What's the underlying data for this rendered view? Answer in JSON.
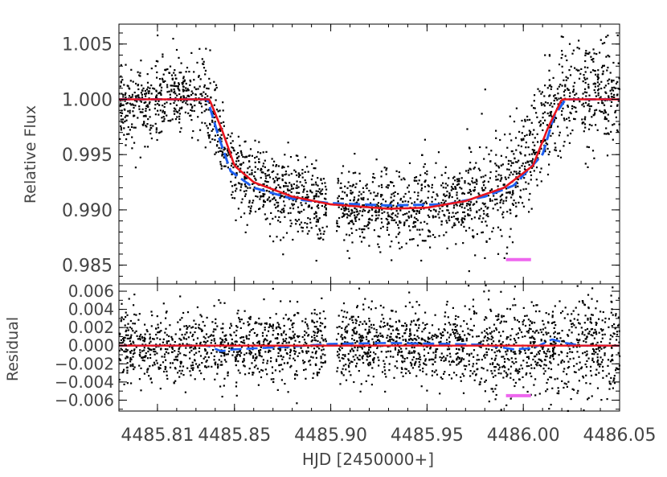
{
  "chart_data": [
    {
      "type": "scatter",
      "panel": "top",
      "title": "",
      "xlabel": "",
      "ylabel": "Relative Flux",
      "xlim": [
        4485.79,
        4486.05
      ],
      "ylim": [
        0.9833,
        1.0068
      ],
      "x_ticks": [
        4485.81,
        4485.85,
        4485.9,
        4485.95,
        4486.0,
        4486.05
      ],
      "y_ticks": [
        0.985,
        0.99,
        0.995,
        1.0,
        1.005
      ],
      "y_tick_labels": [
        "0.985",
        "0.990",
        "0.995",
        "1.000",
        "1.005"
      ],
      "grid": false,
      "legend": "none",
      "series": [
        {
          "kind": "points",
          "color": "#000000",
          "description_of_spread": "photometric points, scatter approx ±0.0018",
          "x": [
            4485.8,
            4485.82,
            4485.835,
            4485.85,
            4485.87,
            4485.9,
            4485.94,
            4485.97,
            4485.99,
            4486.005,
            4486.02,
            4486.04
          ],
          "y": [
            0.9995,
            1.0005,
            1.0001,
            0.9935,
            0.9915,
            0.9905,
            0.9902,
            0.9908,
            0.9922,
            0.995,
            1.0002,
            1.0005
          ]
        },
        {
          "kind": "line",
          "color": "#1e5ff0",
          "style": "dashed",
          "x": [
            4485.79,
            4485.836,
            4485.842,
            4485.848,
            4485.86,
            4485.88,
            4485.9,
            4485.93,
            4485.96,
            4485.98,
            4485.995,
            4486.01,
            4486.016,
            4486.022,
            4486.05
          ],
          "y": [
            1.0,
            1.0,
            0.9965,
            0.9935,
            0.992,
            0.991,
            0.9906,
            0.9904,
            0.9905,
            0.9912,
            0.9922,
            0.995,
            0.9985,
            1.0,
            1.0
          ]
        },
        {
          "kind": "line",
          "color": "#e8141e",
          "style": "solid",
          "x": [
            4485.79,
            4485.837,
            4485.844,
            4485.85,
            4485.86,
            4485.88,
            4485.9,
            4485.93,
            4485.95,
            4485.97,
            4485.99,
            4486.005,
            4486.013,
            4486.02,
            4486.05
          ],
          "y": [
            1.0,
            1.0,
            0.997,
            0.994,
            0.9925,
            0.9912,
            0.9905,
            0.9901,
            0.9902,
            0.9908,
            0.992,
            0.994,
            0.9975,
            1.0,
            1.0
          ]
        },
        {
          "kind": "marker-bar",
          "color": "#ee66ee",
          "x": [
            4485.991,
            4486.004
          ],
          "y": [
            0.9855,
            0.9855
          ]
        }
      ]
    },
    {
      "type": "scatter",
      "panel": "bottom",
      "title": "",
      "xlabel": "HJD [2450000+]",
      "ylabel": "Residual",
      "xlim": [
        4485.79,
        4486.05
      ],
      "ylim": [
        -0.0072,
        0.0068
      ],
      "x_ticks": [
        4485.81,
        4485.85,
        4485.9,
        4485.95,
        4486.0,
        4486.05
      ],
      "x_tick_labels": [
        "4485.81",
        "4485.85",
        "4485.90",
        "4485.95",
        "4486.00",
        "4486.05"
      ],
      "y_ticks": [
        -0.006,
        -0.004,
        -0.002,
        0.0,
        0.002,
        0.004,
        0.006
      ],
      "y_tick_labels": [
        "−0.006",
        "−0.004",
        "−0.002",
        "0.000",
        "0.002",
        "0.004",
        "0.006"
      ],
      "grid": false,
      "legend": "none",
      "series": [
        {
          "kind": "points",
          "color": "#000000",
          "description_of_spread": "residual points, scatter approx ±0.002",
          "x": [
            4485.8,
            4485.85,
            4485.9,
            4485.95,
            4486.0,
            4486.04
          ],
          "y": [
            0.0,
            -0.0002,
            0.0003,
            0.0001,
            -0.0004,
            0.0
          ]
        },
        {
          "kind": "line",
          "color": "#1e5ff0",
          "style": "dashed",
          "x": [
            4485.79,
            4485.836,
            4485.843,
            4485.85,
            4485.86,
            4485.88,
            4485.9,
            4485.93,
            4485.96,
            4485.98,
            4485.995,
            4486.003,
            4486.008,
            4486.015,
            4486.022,
            4486.03,
            4486.05
          ],
          "y": [
            0.0,
            0.0,
            -0.0006,
            -0.0004,
            -0.0003,
            -0.0001,
            0.0002,
            0.0003,
            0.0002,
            0.0001,
            -0.0004,
            -0.0003,
            0.0,
            0.0007,
            0.0003,
            0.0,
            0.0
          ]
        },
        {
          "kind": "line",
          "color": "#e8141e",
          "style": "solid",
          "x": [
            4485.79,
            4486.05
          ],
          "y": [
            0.0,
            0.0
          ]
        },
        {
          "kind": "marker-bar",
          "color": "#ee66ee",
          "x": [
            4485.991,
            4486.004
          ],
          "y": [
            -0.0055,
            -0.0055
          ]
        }
      ]
    }
  ]
}
